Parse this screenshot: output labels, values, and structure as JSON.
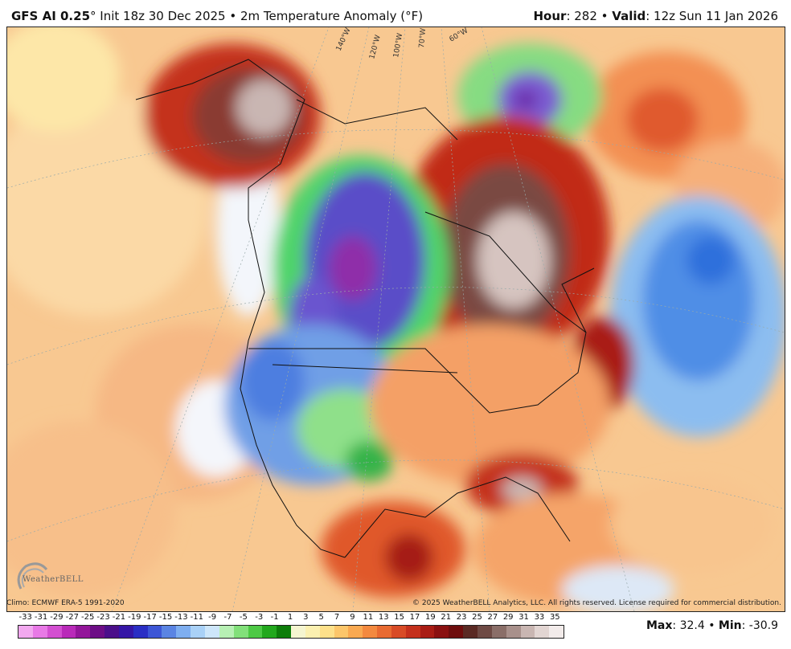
{
  "header": {
    "model": "GFS AI 0.25",
    "degree": "°",
    "init": " Init 18z 30 Dec 2025 • 2m Temperature Anomaly (°F)",
    "hour_label": "Hour",
    "hour_value": ": 282 • ",
    "valid_label": "Valid",
    "valid_value": ": 12z Sun 11 Jan 2026"
  },
  "map": {
    "lon_labels": [
      "140°W",
      "120°W",
      "100°W",
      "70°W",
      "60°W"
    ]
  },
  "footer": {
    "climo": "Climo: ECMWF ERA-5 1991-2020",
    "copyright": "© 2025 WeatherBELL Analytics, LLC. All rights reserved. License required for commercial distribution.",
    "logo": "WeatherBELL"
  },
  "legend": {
    "ticks": [
      "-33",
      "-31",
      "-29",
      "-27",
      "-25",
      "-23",
      "-21",
      "-19",
      "-17",
      "-15",
      "-13",
      "-11",
      "-9",
      "-7",
      "-5",
      "-3",
      "-1",
      "1",
      "3",
      "5",
      "7",
      "9",
      "11",
      "13",
      "15",
      "17",
      "19",
      "21",
      "23",
      "25",
      "27",
      "29",
      "31",
      "33",
      "35"
    ],
    "colors": [
      "#f2a8ef",
      "#e879e6",
      "#d34fd1",
      "#b92ab9",
      "#93169a",
      "#6d0d86",
      "#4b0f8a",
      "#3516a6",
      "#2a2ec4",
      "#3d56d6",
      "#5a84e3",
      "#7eaef0",
      "#a9d1f7",
      "#cde6fa",
      "#b7f0b4",
      "#82e07a",
      "#4dc945",
      "#22a81d",
      "#0d7d0a",
      "#f5f5d0",
      "#fbf0b0",
      "#fde08a",
      "#fcc66a",
      "#f9a951",
      "#f3893f",
      "#e86a31",
      "#d84b26",
      "#c4301c",
      "#a91c14",
      "#8a1010",
      "#6e0d0d",
      "#5a2a24",
      "#6e4a44",
      "#8a6e68",
      "#a8908b",
      "#c9b6b2",
      "#e2d5d2",
      "#f2ebea"
    ],
    "max_label": "Max",
    "max_value": ": 32.4 • ",
    "min_label": "Min",
    "min_value": ": -30.9"
  }
}
